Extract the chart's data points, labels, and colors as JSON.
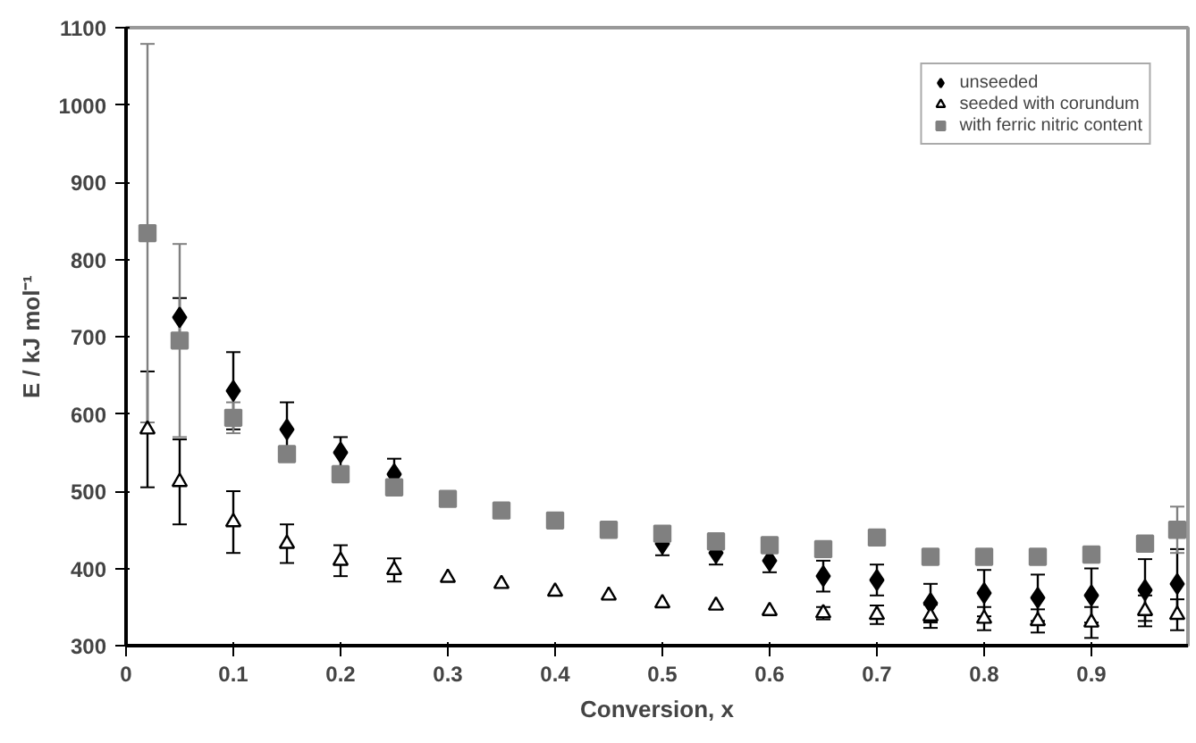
{
  "chart_data": {
    "type": "scatter",
    "xlabel": "Conversion, x",
    "ylabel": "E / kJ mol⁻¹",
    "x": [
      0.02,
      0.05,
      0.1,
      0.15,
      0.2,
      0.25,
      0.3,
      0.35,
      0.4,
      0.45,
      0.5,
      0.55,
      0.6,
      0.65,
      0.7,
      0.75,
      0.8,
      0.85,
      0.9,
      0.95,
      0.98
    ],
    "series": [
      {
        "name": "unseeded",
        "color": "#000000",
        "marker": "diamond",
        "values": [
          null,
          725,
          630,
          580,
          550,
          522,
          null,
          null,
          null,
          null,
          432,
          420,
          410,
          390,
          385,
          355,
          368,
          362,
          365,
          372,
          380
        ],
        "errors": [
          null,
          25,
          50,
          35,
          20,
          20,
          null,
          null,
          null,
          null,
          15,
          15,
          15,
          20,
          20,
          25,
          30,
          30,
          35,
          40,
          45
        ]
      },
      {
        "name": "seeded with corundum",
        "color": "#000000",
        "marker": "triangle",
        "values": [
          580,
          512,
          460,
          432,
          410,
          398,
          388,
          380,
          370,
          365,
          355,
          352,
          345,
          342,
          340,
          338,
          335,
          332,
          330,
          345,
          340
        ],
        "errors": [
          75,
          55,
          40,
          25,
          20,
          15,
          null,
          null,
          null,
          null,
          null,
          null,
          null,
          8,
          12,
          15,
          15,
          15,
          20,
          20,
          20
        ]
      },
      {
        "name": "with ferric nitric content",
        "color": "#808080",
        "marker": "square",
        "values": [
          834,
          695,
          595,
          548,
          522,
          505,
          490,
          475,
          462,
          450,
          445,
          435,
          430,
          425,
          440,
          415,
          415,
          415,
          418,
          432,
          450
        ],
        "errors": [
          245,
          125,
          20,
          null,
          null,
          null,
          null,
          null,
          null,
          null,
          null,
          null,
          null,
          null,
          null,
          null,
          null,
          null,
          null,
          null,
          30
        ]
      }
    ],
    "xlim": [
      0,
      0.99
    ],
    "xticks": [
      0,
      0.1,
      0.2,
      0.3,
      0.4,
      0.5,
      0.6,
      0.7,
      0.8,
      0.9
    ],
    "ylim": [
      300,
      1100
    ],
    "yticks": [
      300,
      400,
      500,
      600,
      700,
      800,
      900,
      1000,
      1100
    ],
    "grid": false,
    "legend": "top right"
  }
}
